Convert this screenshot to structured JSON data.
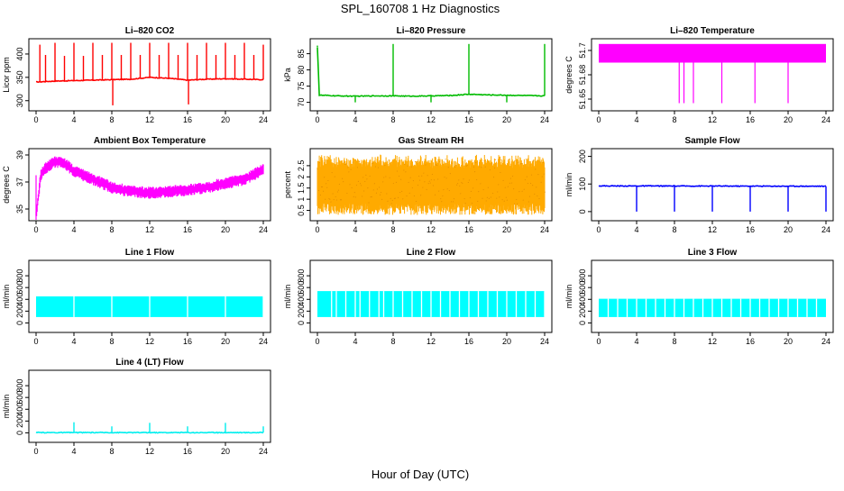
{
  "page": {
    "title": "SPL_160708  1 Hz Diagnostics",
    "xlabel": "Hour of Day (UTC)"
  },
  "chart_data": [
    {
      "type": "line",
      "title": "Li–820 CO2",
      "ylabel": "Licor ppm",
      "color": "#ff0000",
      "xticks": [
        0,
        4,
        8,
        12,
        16,
        20,
        24
      ],
      "xlim": [
        0,
        24
      ],
      "yticks": [
        300,
        350,
        400
      ],
      "ylim": [
        286,
        425
      ],
      "series": [
        {
          "x": [
            0,
            2,
            4,
            6,
            8,
            10,
            12,
            14,
            16,
            18,
            20,
            22,
            24
          ],
          "values": [
            340,
            342,
            343,
            344,
            345,
            346,
            350,
            348,
            344,
            346,
            347,
            346,
            345
          ]
        }
      ],
      "spikes": [
        [
          0.4,
          420
        ],
        [
          1.0,
          398
        ],
        [
          2.0,
          424
        ],
        [
          3.0,
          396
        ],
        [
          4.0,
          424
        ],
        [
          5.0,
          396
        ],
        [
          6.0,
          424
        ],
        [
          7.0,
          398
        ],
        [
          8.0,
          424
        ],
        [
          8.1,
          290
        ],
        [
          9.0,
          398
        ],
        [
          10.0,
          424
        ],
        [
          11.0,
          398
        ],
        [
          12.0,
          424
        ],
        [
          13.0,
          398
        ],
        [
          14.0,
          424
        ],
        [
          15.0,
          398
        ],
        [
          16.0,
          424
        ],
        [
          16.1,
          292
        ],
        [
          17.0,
          398
        ],
        [
          18.0,
          424
        ],
        [
          19.0,
          398
        ],
        [
          20.0,
          424
        ],
        [
          21.0,
          398
        ],
        [
          22.0,
          424
        ],
        [
          23.0,
          398
        ],
        [
          24.0,
          420
        ]
      ]
    },
    {
      "type": "line",
      "title": "Li–820 Pressure",
      "ylabel": "kPa",
      "color": "#00bb00",
      "xticks": [
        0,
        4,
        8,
        12,
        16,
        20,
        24
      ],
      "xlim": [
        0,
        24
      ],
      "yticks": [
        70,
        75,
        80,
        85
      ],
      "ylim": [
        68.5,
        88.5
      ],
      "series": [
        {
          "x": [
            0,
            0.2,
            2,
            4,
            6,
            8,
            10,
            12,
            14,
            16,
            18,
            20,
            22,
            24
          ],
          "values": [
            87,
            72.2,
            72.0,
            71.9,
            72.0,
            72.0,
            71.9,
            72.0,
            72.1,
            72.5,
            72.3,
            72.2,
            72.1,
            72.0
          ]
        }
      ],
      "spikes": [
        [
          0,
          87.5
        ],
        [
          4.0,
          70
        ],
        [
          8.0,
          88
        ],
        [
          12.0,
          70
        ],
        [
          16.0,
          88
        ],
        [
          20.0,
          70
        ],
        [
          24.0,
          88
        ]
      ]
    },
    {
      "type": "area",
      "title": "Li–820 Temperature",
      "ylabel": "degrees C",
      "color": "#ff00ff",
      "xticks": [
        0,
        4,
        8,
        12,
        16,
        20,
        24
      ],
      "xlim": [
        0,
        24
      ],
      "yticks": [
        51.65,
        51.68,
        51.71
      ],
      "yticklabels": [
        "51.65",
        "51.68",
        "51.7"
      ],
      "ylim": [
        51.64,
        51.72
      ],
      "band": [
        51.695,
        51.718
      ],
      "drops": [
        [
          8.5,
          51.645
        ],
        [
          9.0,
          51.645
        ],
        [
          10.0,
          51.645
        ],
        [
          13.0,
          51.645
        ],
        [
          16.5,
          51.645
        ],
        [
          20.0,
          51.645
        ]
      ]
    },
    {
      "type": "area",
      "title": "Ambient Box Temperature",
      "ylabel": "degrees C",
      "color": "#ff00ff",
      "xticks": [
        0,
        4,
        8,
        12,
        16,
        20,
        24
      ],
      "xlim": [
        0,
        24
      ],
      "yticks": [
        35,
        37,
        39
      ],
      "ylim": [
        34.4,
        39.2
      ],
      "series": [
        {
          "x": [
            0,
            0.5,
            1,
            2,
            3,
            4,
            6,
            8,
            10,
            12,
            14,
            16,
            18,
            20,
            22,
            24
          ],
          "values": [
            34.5,
            37.5,
            38.0,
            38.5,
            38.4,
            37.8,
            37.2,
            36.6,
            36.3,
            36.2,
            36.3,
            36.4,
            36.6,
            36.9,
            37.2,
            37.9
          ]
        }
      ],
      "band_halfwidth": 0.45
    },
    {
      "type": "area",
      "title": "Gas Stream RH",
      "ylabel": "percent",
      "color": "#ffaa00",
      "accent": "#dd8800",
      "xticks": [
        0,
        4,
        8,
        12,
        16,
        20,
        24
      ],
      "xlim": [
        0,
        24
      ],
      "yticks": [
        0.5,
        1,
        1.5,
        2,
        2.5
      ],
      "yticklabels": [
        "0.5",
        "1",
        "1.5",
        "2",
        "2.5"
      ],
      "ylim": [
        0.2,
        3.1
      ],
      "band": [
        0.8,
        2.8
      ],
      "spread": [
        0.3,
        3.0
      ]
    },
    {
      "type": "line",
      "title": "Sample Flow",
      "ylabel": "ml/min",
      "color": "#0000ff",
      "xticks": [
        0,
        4,
        8,
        12,
        16,
        20,
        24
      ],
      "xlim": [
        0,
        24
      ],
      "yticks": [
        0,
        100,
        200
      ],
      "ylim": [
        -20,
        215
      ],
      "series": [
        {
          "x": [
            0,
            24
          ],
          "values": [
            93,
            92
          ]
        }
      ],
      "spikes": [
        [
          4.0,
          0
        ],
        [
          8.0,
          0
        ],
        [
          12.0,
          0
        ],
        [
          16.0,
          0
        ],
        [
          20.0,
          0
        ],
        [
          24.0,
          0
        ]
      ]
    },
    {
      "type": "area",
      "title": "Line 1 Flow",
      "ylabel": "ml/min",
      "color": "#00ffff",
      "xticks": [
        0,
        4,
        8,
        12,
        16,
        20,
        24
      ],
      "xlim": [
        0,
        24
      ],
      "yticks": [
        0,
        200,
        400,
        600,
        800
      ],
      "ylim": [
        -100,
        1000
      ],
      "band": [
        100,
        450
      ],
      "gaps": [
        4,
        8,
        12,
        16,
        20,
        24
      ]
    },
    {
      "type": "area",
      "title": "Line 2 Flow",
      "ylabel": "ml/min",
      "color": "#00ffff",
      "xticks": [
        0,
        4,
        8,
        12,
        16,
        20,
        24
      ],
      "xlim": [
        0,
        24
      ],
      "yticks": [
        0,
        200,
        400,
        600,
        800
      ],
      "ylim": [
        -100,
        1000
      ],
      "band": [
        100,
        540
      ],
      "gaps": [
        1.5,
        2,
        3,
        4,
        4.5,
        5.5,
        6.5,
        7,
        8,
        9,
        10,
        11,
        12,
        13,
        14,
        15,
        16,
        17,
        18,
        19,
        20,
        21,
        22,
        23,
        24
      ]
    },
    {
      "type": "area",
      "title": "Line 3 Flow",
      "ylabel": "ml/min",
      "color": "#00ffff",
      "xticks": [
        0,
        4,
        8,
        12,
        16,
        20,
        24
      ],
      "xlim": [
        0,
        24
      ],
      "yticks": [
        0,
        200,
        400,
        600,
        800
      ],
      "ylim": [
        -100,
        1000
      ],
      "band": [
        100,
        410
      ],
      "gaps": [
        1,
        2,
        3,
        4,
        5,
        6,
        7,
        8,
        9,
        10,
        11,
        12,
        13,
        14,
        15,
        16,
        17,
        18,
        19,
        20,
        21,
        22,
        23
      ]
    },
    {
      "type": "line",
      "title": "Line 4 (LT) Flow",
      "ylabel": "ml/min",
      "color": "#00eeee",
      "xticks": [
        0,
        4,
        8,
        12,
        16,
        20,
        24
      ],
      "xlim": [
        0,
        24
      ],
      "yticks": [
        0,
        200,
        400,
        600,
        800
      ],
      "ylim": [
        -100,
        1000
      ],
      "series": [
        {
          "x": [
            0,
            24
          ],
          "values": [
            5,
            5
          ]
        }
      ],
      "spikes": [
        [
          4.0,
          180
        ],
        [
          8.0,
          110
        ],
        [
          12.0,
          170
        ],
        [
          16.0,
          110
        ],
        [
          20.0,
          170
        ],
        [
          24.0,
          110
        ]
      ]
    }
  ]
}
